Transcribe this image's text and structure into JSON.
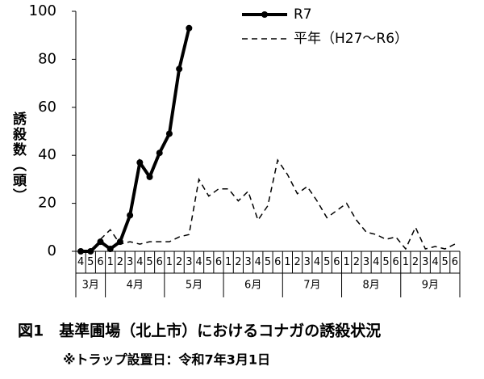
{
  "chart_data": {
    "type": "line",
    "title": "図1　基準圃場（北上市）におけるコナガの誘殺状況",
    "note": "※トラップ設置日：令和7年3月1日",
    "y_label": "誘殺数（頭）",
    "categories": [
      "4",
      "5",
      "6",
      "1",
      "2",
      "3",
      "4",
      "5",
      "6",
      "1",
      "2",
      "3",
      "4",
      "5",
      "6",
      "1",
      "2",
      "3",
      "4",
      "5",
      "6",
      "1",
      "2",
      "3",
      "4",
      "5",
      "6",
      "1",
      "2",
      "3",
      "4",
      "5",
      "6",
      "1",
      "2",
      "3",
      "4",
      "5",
      "6"
    ],
    "months": [
      "3月",
      "4月",
      "5月",
      "6月",
      "7月",
      "8月",
      "9月"
    ],
    "series": [
      {
        "name": "R7",
        "color": "#000000",
        "style": "solid",
        "marker": true,
        "values": [
          0,
          0,
          4,
          1,
          4,
          15,
          37,
          31,
          41,
          49,
          76,
          93,
          null,
          null,
          null,
          null,
          null,
          null,
          null,
          null,
          null,
          null,
          null,
          null,
          null,
          null,
          null,
          null,
          null,
          null,
          null,
          null,
          null,
          null,
          null,
          null,
          null,
          null,
          null
        ]
      },
      {
        "name": "平年（H27～R6）",
        "color": "#000000",
        "style": "dashed",
        "marker": false,
        "values": [
          null,
          null,
          5,
          9,
          3,
          4,
          3,
          4,
          4,
          4,
          6,
          7,
          30,
          23,
          26,
          26,
          21,
          25,
          13,
          19,
          38,
          32,
          24,
          27,
          21,
          14,
          17,
          20,
          13,
          8,
          7,
          5,
          6,
          1,
          10,
          1,
          2,
          1,
          3
        ]
      }
    ],
    "ylim": [
      0,
      100
    ],
    "yticks": [
      0,
      20,
      40,
      60,
      80,
      100
    ],
    "grid": false
  }
}
